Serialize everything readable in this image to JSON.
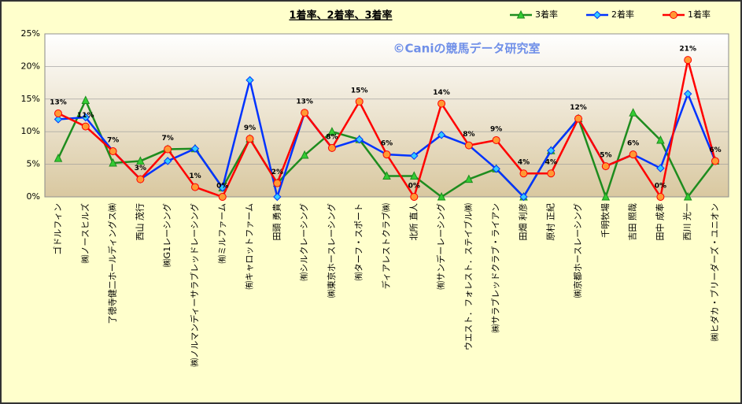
{
  "chart_data": {
    "type": "line",
    "title": "1着率、2着率、3着率",
    "annotation": "©Caniの競馬データ研究室",
    "categories": [
      "ゴドルフィン",
      "㈱ノースヒルズ",
      "了徳寺健二ホールディングス㈱",
      "西山 茂行",
      "㈱G1レーシング",
      "㈱ノルマンディーサラブレッドレーシング",
      "㈲ミルファーム",
      "㈲キャロットファーム",
      "田頭 勇貴",
      "㈲シルクレーシング",
      "㈱東京ホースレーシング",
      "㈲ターフ・スポート",
      "ディアレストクラブ㈱",
      "北所 直人",
      "㈲サンデーレーシング",
      "ウエスト．フォレスト．ステイブル㈱",
      "㈱サラブレッドクラブ・ライアン",
      "田畑 利彦",
      "原村 正紀",
      "㈱京都ホースレーシング",
      "千明牧場",
      "吉田 照哉",
      "田中 成奉",
      "西川 光一",
      "㈱ヒダカ・ブリーダーズ・ユニオン"
    ],
    "series": [
      {
        "name": "3着率",
        "color": "#1e8c1e",
        "marker": "triangle",
        "marker_fill": "#33cc33",
        "values": [
          5.9,
          14.8,
          5.2,
          5.5,
          7.3,
          7.4,
          1.4,
          8.9,
          2.1,
          6.4,
          10.0,
          8.8,
          3.2,
          3.2,
          0,
          2.7,
          4.3,
          0,
          7.1,
          12.0,
          0,
          12.9,
          8.7,
          0,
          5.5
        ]
      },
      {
        "name": "2着率",
        "color": "#0033ff",
        "marker": "diamond",
        "marker_fill": "#33ccff",
        "values": [
          11.9,
          12.2,
          7.0,
          2.7,
          5.5,
          7.4,
          1.4,
          17.9,
          0,
          12.9,
          7.5,
          8.8,
          6.5,
          6.3,
          9.5,
          7.9,
          4.3,
          0,
          7.1,
          12.0,
          4.7,
          6.5,
          4.4,
          15.8,
          5.5
        ]
      },
      {
        "name": "1着率",
        "color": "#ff0000",
        "marker": "circle",
        "marker_fill": "#ff9933",
        "values": [
          12.8,
          10.8,
          7.0,
          2.7,
          7.3,
          1.5,
          0,
          8.9,
          2.1,
          12.9,
          7.5,
          14.6,
          6.5,
          0,
          14.3,
          7.9,
          8.7,
          3.6,
          3.6,
          12.0,
          4.7,
          6.5,
          0,
          21.0,
          5.5
        ],
        "value_labels": [
          "13%",
          "11%",
          "7%",
          "3%",
          "7%",
          "1%",
          "0%",
          "9%",
          "2%",
          "13%",
          "8%",
          "15%",
          "6%",
          "0%",
          "14%",
          "8%",
          "9%",
          "4%",
          "4%",
          "12%",
          "5%",
          "6%",
          "0%",
          "21%",
          "6%"
        ]
      }
    ],
    "ylim": [
      0,
      25
    ],
    "yticks": [
      {
        "value": 0,
        "label": "0%"
      },
      {
        "value": 5,
        "label": "5%"
      },
      {
        "value": 10,
        "label": "10%"
      },
      {
        "value": 15,
        "label": "15%"
      },
      {
        "value": 20,
        "label": "20%"
      },
      {
        "value": 25,
        "label": "25%"
      }
    ],
    "grid": true,
    "legend": "top-right"
  }
}
